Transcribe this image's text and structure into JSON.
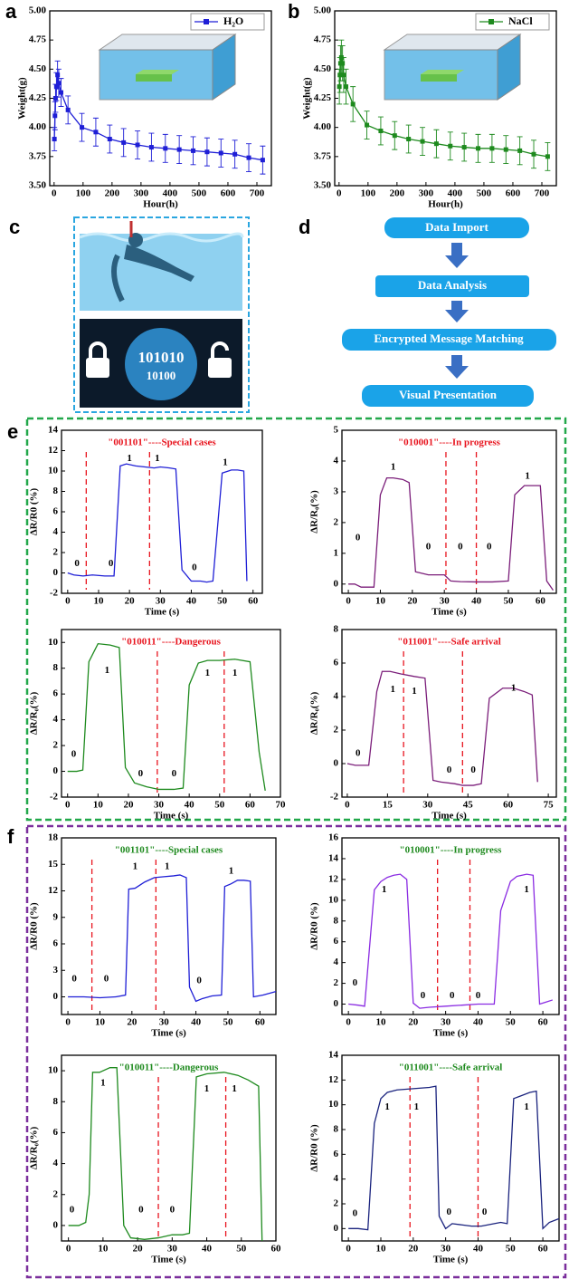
{
  "panel_labels": [
    "a",
    "b",
    "c",
    "d",
    "e",
    "f"
  ],
  "illustration": {
    "texts": [
      "101010",
      "10100"
    ]
  },
  "flowchart": {
    "nodes": [
      "Data Import",
      "Data Analysis",
      "Encrypted Message Matching",
      "Visual Presentation"
    ]
  },
  "chart_data": [
    {
      "type": "line",
      "xlabel": "Hour(h)",
      "ylabel": "Weight(g)",
      "legend": "upper right",
      "x": [
        1,
        3,
        5,
        8,
        12,
        16,
        24,
        48,
        96,
        144,
        192,
        240,
        288,
        336,
        384,
        432,
        480,
        528,
        576,
        624,
        672,
        720
      ],
      "series": [
        {
          "name": "H₂O",
          "color": "#1f1fd6",
          "marker": "square",
          "values": [
            3.9,
            4.1,
            4.25,
            4.35,
            4.45,
            4.38,
            4.3,
            4.15,
            4.0,
            3.96,
            3.9,
            3.87,
            3.85,
            3.83,
            3.82,
            3.81,
            3.8,
            3.79,
            3.78,
            3.77,
            3.74,
            3.72
          ],
          "errors": [
            0.1,
            0.12,
            0.12,
            0.12,
            0.12,
            0.12,
            0.12,
            0.12,
            0.12,
            0.12,
            0.12,
            0.12,
            0.12,
            0.12,
            0.12,
            0.12,
            0.12,
            0.12,
            0.12,
            0.12,
            0.12,
            0.12
          ]
        }
      ],
      "xlim": [
        -15,
        750
      ],
      "xticks": [
        0,
        100,
        200,
        300,
        400,
        500,
        600,
        700
      ],
      "ylim": [
        3.5,
        5.0
      ],
      "yticks": [
        {
          "value": 3.5,
          "label": "3.50"
        },
        3.75,
        {
          "value": 4,
          "label": "4.00"
        },
        4.25,
        {
          "value": 4.5,
          "label": "4.50"
        },
        4.75,
        {
          "value": 5,
          "label": "5.00"
        }
      ]
    },
    {
      "type": "line",
      "xlabel": "Hour(h)",
      "ylabel": "Weight(g)",
      "legend": "upper right",
      "x": [
        1,
        3,
        5,
        8,
        12,
        16,
        24,
        48,
        96,
        144,
        192,
        240,
        288,
        336,
        384,
        432,
        480,
        528,
        576,
        624,
        672,
        720
      ],
      "series": [
        {
          "name": "NaCl",
          "color": "#1e8a1e",
          "marker": "square",
          "values": [
            4.35,
            4.45,
            4.55,
            4.6,
            4.55,
            4.45,
            4.35,
            4.2,
            4.02,
            3.97,
            3.93,
            3.9,
            3.88,
            3.86,
            3.84,
            3.83,
            3.82,
            3.82,
            3.81,
            3.8,
            3.77,
            3.75
          ],
          "errors": [
            0.15,
            0.15,
            0.15,
            0.15,
            0.15,
            0.15,
            0.15,
            0.15,
            0.12,
            0.12,
            0.12,
            0.12,
            0.12,
            0.12,
            0.12,
            0.12,
            0.12,
            0.12,
            0.12,
            0.12,
            0.12,
            0.12
          ]
        }
      ],
      "xlim": [
        -15,
        750
      ],
      "xticks": [
        0,
        100,
        200,
        300,
        400,
        500,
        600,
        700
      ],
      "ylim": [
        3.5,
        5.0
      ],
      "yticks": [
        {
          "value": 3.5,
          "label": "3.50"
        },
        3.75,
        {
          "value": 4,
          "label": "4.00"
        },
        4.25,
        {
          "value": 4.5,
          "label": "4.50"
        },
        4.75,
        {
          "value": 5,
          "label": "5.00"
        }
      ]
    },
    {
      "type": "line",
      "title": "\"001101\"----Special cases",
      "title_color": "#e8141e",
      "xlabel": "Time (s)",
      "ylabel": "ΔR/R0 (%)",
      "x": [
        0,
        2,
        5,
        8,
        12,
        15,
        17,
        19,
        22,
        25,
        28,
        30,
        33,
        35,
        37,
        40,
        43,
        45,
        47,
        50,
        53,
        55,
        57,
        58
      ],
      "series": [
        {
          "color": "#1f1fd6",
          "values": [
            0,
            -0.2,
            -0.3,
            -0.2,
            -0.3,
            -0.3,
            10.5,
            10.7,
            10.5,
            10.4,
            10.3,
            10.4,
            10.3,
            10.2,
            0.3,
            -0.8,
            -0.8,
            -0.9,
            -0.8,
            9.8,
            10.1,
            10.1,
            10.0,
            -0.8
          ]
        }
      ],
      "vlines": [
        6,
        26.5
      ],
      "annotations": [
        {
          "text": "0",
          "x": 3,
          "y": 0.9
        },
        {
          "text": "0",
          "x": 14,
          "y": 0.9
        },
        {
          "text": "1",
          "x": 20,
          "y": 11.2
        },
        {
          "text": "1",
          "x": 29,
          "y": 11.2
        },
        {
          "text": "0",
          "x": 41,
          "y": 0.5
        },
        {
          "text": "1",
          "x": 51,
          "y": 10.8
        }
      ],
      "xlim": [
        -2,
        63
      ],
      "xticks": [
        0,
        10,
        20,
        30,
        40,
        50,
        60
      ],
      "ylim": [
        -2,
        14
      ],
      "yticks": [
        -2,
        0,
        2,
        4,
        6,
        8,
        10,
        12,
        14
      ]
    },
    {
      "type": "line",
      "title": "\"010001\"----In progress",
      "title_color": "#e8141e",
      "xlabel": "Time (s)",
      "ylabel": "ΔR/R₀(%)",
      "x": [
        0,
        2,
        4,
        8,
        10,
        12,
        14,
        17,
        19,
        21,
        25,
        30,
        32,
        35,
        40,
        45,
        50,
        52,
        55,
        58,
        60,
        62,
        64
      ],
      "series": [
        {
          "color": "#7b1e7a",
          "values": [
            0,
            0,
            -0.1,
            -0.1,
            2.9,
            3.45,
            3.45,
            3.4,
            3.3,
            0.4,
            0.3,
            0.3,
            0.1,
            0.08,
            0.07,
            0.07,
            0.1,
            2.9,
            3.2,
            3.2,
            3.2,
            0.1,
            -0.2
          ]
        }
      ],
      "vlines": [
        30.5,
        40
      ],
      "annotations": [
        {
          "text": "0",
          "x": 3,
          "y": 1.5
        },
        {
          "text": "1",
          "x": 14,
          "y": 3.8
        },
        {
          "text": "0",
          "x": 25,
          "y": 1.2
        },
        {
          "text": "0",
          "x": 35,
          "y": 1.2
        },
        {
          "text": "0",
          "x": 44,
          "y": 1.2
        },
        {
          "text": "1",
          "x": 56,
          "y": 3.5
        }
      ],
      "xlim": [
        -2,
        65
      ],
      "xticks": [
        0,
        10,
        20,
        30,
        40,
        50,
        60
      ],
      "ylim": [
        -0.3,
        5
      ],
      "yticks": [
        0,
        1,
        2,
        3,
        4,
        5
      ]
    },
    {
      "type": "line",
      "title": "\"010011\"----Dangerous",
      "title_color": "#e8141e",
      "xlabel": "Time (s)",
      "ylabel": "ΔR/R₀(%)",
      "x": [
        0,
        3,
        5,
        7,
        10,
        14,
        17,
        19,
        22,
        26,
        30,
        35,
        38,
        40,
        43,
        46,
        50,
        55,
        60,
        63,
        65
      ],
      "series": [
        {
          "color": "#1e8a1e",
          "values": [
            0,
            0,
            0.1,
            8.5,
            9.9,
            9.8,
            9.6,
            0.3,
            -0.9,
            -1.2,
            -1.4,
            -1.4,
            -1.3,
            6.7,
            8.4,
            8.6,
            8.6,
            8.7,
            8.5,
            1.5,
            -1.5
          ]
        }
      ],
      "vlines": [
        29.5,
        51.5
      ],
      "annotations": [
        {
          "text": "0",
          "x": 2,
          "y": 1.3
        },
        {
          "text": "1",
          "x": 13,
          "y": 7.8
        },
        {
          "text": "0",
          "x": 24,
          "y": -0.2
        },
        {
          "text": "0",
          "x": 35,
          "y": -0.2
        },
        {
          "text": "1",
          "x": 46,
          "y": 7.6
        },
        {
          "text": "1",
          "x": 55,
          "y": 7.6
        }
      ],
      "xlim": [
        -2,
        70
      ],
      "xticks": [
        0,
        10,
        20,
        30,
        40,
        50,
        60,
        70
      ],
      "ylim": [
        -2,
        11
      ],
      "yticks": [
        -2,
        0,
        2,
        4,
        6,
        8,
        10
      ]
    },
    {
      "type": "line",
      "title": "\"011001\"----Safe arrival",
      "title_color": "#e8141e",
      "xlabel": "Time (s)",
      "ylabel": "ΔR/R₀(%)",
      "x": [
        0,
        3,
        6,
        8,
        11,
        13,
        16,
        20,
        25,
        29,
        32,
        35,
        40,
        43,
        47,
        50,
        51,
        53,
        58,
        62,
        66,
        69,
        71
      ],
      "series": [
        {
          "color": "#7b1e7a",
          "values": [
            0,
            -0.1,
            -0.1,
            -0.1,
            4.3,
            5.5,
            5.5,
            5.35,
            5.2,
            5.1,
            -1,
            -1.1,
            -1.2,
            -1.3,
            -1.3,
            -1.2,
            0.5,
            3.9,
            4.5,
            4.5,
            4.3,
            4.1,
            -1.1
          ]
        }
      ],
      "vlines": [
        21,
        43
      ],
      "annotations": [
        {
          "text": "0",
          "x": 4,
          "y": 0.6
        },
        {
          "text": "1",
          "x": 17,
          "y": 4.4
        },
        {
          "text": "1",
          "x": 25,
          "y": 4.3
        },
        {
          "text": "0",
          "x": 38,
          "y": -0.4
        },
        {
          "text": "0",
          "x": 47,
          "y": -0.4
        },
        {
          "text": "1",
          "x": 62,
          "y": 4.5
        }
      ],
      "xlim": [
        -2,
        78
      ],
      "xticks": [
        0,
        15,
        30,
        45,
        60,
        75
      ],
      "ylim": [
        -2,
        8
      ],
      "yticks": [
        -2,
        0,
        2,
        4,
        6,
        8
      ]
    },
    {
      "type": "line",
      "title": "\"001101\"----Special cases",
      "title_color": "#1e8a1e",
      "xlabel": "Time (s)",
      "ylabel": "ΔR/R0 (%)",
      "x": [
        0,
        5,
        10,
        15,
        18,
        19,
        21,
        24,
        27,
        30,
        33,
        35,
        37,
        38,
        40,
        42,
        45,
        48,
        49,
        51,
        53,
        55,
        57,
        58,
        61,
        65
      ],
      "series": [
        {
          "color": "#1f1fd6",
          "values": [
            0,
            0,
            -0.1,
            0,
            0.2,
            12.2,
            12.3,
            13,
            13.5,
            13.6,
            13.7,
            13.8,
            13.5,
            1.1,
            -0.5,
            -0.2,
            0.1,
            0.2,
            12.5,
            12.8,
            13.2,
            13.2,
            13.1,
            0,
            0.2,
            0.6
          ]
        }
      ],
      "vlines": [
        7.5,
        27.5
      ],
      "annotations": [
        {
          "text": "0",
          "x": 2,
          "y": 2
        },
        {
          "text": "0",
          "x": 12,
          "y": 2
        },
        {
          "text": "1",
          "x": 21,
          "y": 14.7
        },
        {
          "text": "1",
          "x": 31,
          "y": 14.7
        },
        {
          "text": "0",
          "x": 41,
          "y": 1.8
        },
        {
          "text": "1",
          "x": 51,
          "y": 14.2
        }
      ],
      "xlim": [
        -2,
        65
      ],
      "xticks": [
        0,
        10,
        20,
        30,
        40,
        50,
        60
      ],
      "ylim": [
        -2,
        18
      ],
      "yticks": [
        0,
        3,
        6,
        9,
        12,
        15,
        18
      ]
    },
    {
      "type": "line",
      "title": "\"010001\"----In progress",
      "title_color": "#1e8a1e",
      "xlabel": "Time (s)",
      "ylabel": "ΔR/R0 (%)",
      "x": [
        0,
        3,
        5,
        8,
        10,
        12,
        14,
        16,
        18,
        20,
        22,
        25,
        30,
        35,
        40,
        45,
        47,
        50,
        52,
        55,
        57,
        59,
        61,
        63
      ],
      "series": [
        {
          "color": "#8a2be2",
          "values": [
            0,
            -0.1,
            -0.2,
            11,
            11.8,
            12.2,
            12.4,
            12.5,
            12,
            0.1,
            -0.4,
            -0.3,
            -0.2,
            -0.1,
            0,
            0,
            9,
            11.8,
            12.3,
            12.5,
            12.4,
            0,
            0.2,
            0.4
          ]
        }
      ],
      "vlines": [
        27.5,
        37.5
      ],
      "annotations": [
        {
          "text": "0",
          "x": 2,
          "y": 2
        },
        {
          "text": "1",
          "x": 11,
          "y": 11
        },
        {
          "text": "0",
          "x": 23,
          "y": 0.8
        },
        {
          "text": "0",
          "x": 32,
          "y": 0.8
        },
        {
          "text": "0",
          "x": 40,
          "y": 0.8
        },
        {
          "text": "1",
          "x": 55,
          "y": 11
        }
      ],
      "xlim": [
        -2,
        65
      ],
      "xticks": [
        0,
        10,
        20,
        30,
        40,
        50,
        60
      ],
      "ylim": [
        -1,
        16
      ],
      "yticks": [
        0,
        2,
        4,
        6,
        8,
        10,
        12,
        14,
        16
      ]
    },
    {
      "type": "line",
      "title": "\"010011\"----Dangerous",
      "title_color": "#1e8a1e",
      "xlabel": "Time (s)",
      "ylabel": "ΔR/R₀(%)",
      "x": [
        0,
        3,
        5,
        6,
        7,
        9,
        12,
        14,
        16,
        18,
        22,
        26,
        30,
        33,
        35,
        37,
        40,
        45,
        49,
        52,
        55,
        56
      ],
      "series": [
        {
          "color": "#1e8a1e",
          "values": [
            0,
            0,
            0.2,
            2,
            9.9,
            9.9,
            10.2,
            10.2,
            0,
            -0.8,
            -0.9,
            -0.8,
            -0.6,
            -0.6,
            -0.5,
            9.6,
            9.8,
            9.9,
            9.7,
            9.4,
            9.0,
            -1
          ]
        }
      ],
      "vlines": [
        26,
        45.5
      ],
      "annotations": [
        {
          "text": "0",
          "x": 1,
          "y": 1
        },
        {
          "text": "1",
          "x": 10,
          "y": 9.2
        },
        {
          "text": "0",
          "x": 21,
          "y": 1
        },
        {
          "text": "0",
          "x": 30,
          "y": 1
        },
        {
          "text": "1",
          "x": 40,
          "y": 8.8
        },
        {
          "text": "1",
          "x": 48,
          "y": 8.8
        }
      ],
      "xlim": [
        -2,
        60
      ],
      "xticks": [
        0,
        10,
        20,
        30,
        40,
        50,
        60
      ],
      "ylim": [
        -1,
        11
      ],
      "yticks": [
        0,
        2,
        4,
        6,
        8,
        10
      ]
    },
    {
      "type": "line",
      "title": "\"011001\"----Safe arrival",
      "title_color": "#1e8a1e",
      "xlabel": "Time (s)",
      "ylabel": "ΔR/R0 (%)",
      "x": [
        0,
        3,
        6,
        8,
        10,
        12,
        15,
        20,
        25,
        27,
        28,
        30,
        32,
        35,
        38,
        41,
        45,
        47,
        49,
        51,
        53,
        56,
        58,
        60,
        62,
        65
      ],
      "series": [
        {
          "color": "#1a237e",
          "values": [
            0,
            0,
            -0.1,
            8.5,
            10.5,
            11,
            11.2,
            11.3,
            11.4,
            11.5,
            1,
            0,
            0.4,
            0.3,
            0.2,
            0.2,
            0.4,
            0.5,
            0.4,
            10.5,
            10.7,
            11,
            11.1,
            0,
            0.5,
            0.8
          ]
        }
      ],
      "vlines": [
        19,
        40
      ],
      "annotations": [
        {
          "text": "0",
          "x": 2,
          "y": 1.2
        },
        {
          "text": "1",
          "x": 12,
          "y": 9.8
        },
        {
          "text": "1",
          "x": 21,
          "y": 9.8
        },
        {
          "text": "0",
          "x": 31,
          "y": 1.3
        },
        {
          "text": "0",
          "x": 42,
          "y": 1.3
        },
        {
          "text": "1",
          "x": 55,
          "y": 9.8
        }
      ],
      "xlim": [
        -2,
        65
      ],
      "xticks": [
        0,
        10,
        20,
        30,
        40,
        50,
        60
      ],
      "ylim": [
        -1,
        14
      ],
      "yticks": [
        0,
        2,
        4,
        6,
        8,
        10,
        12,
        14
      ]
    }
  ]
}
